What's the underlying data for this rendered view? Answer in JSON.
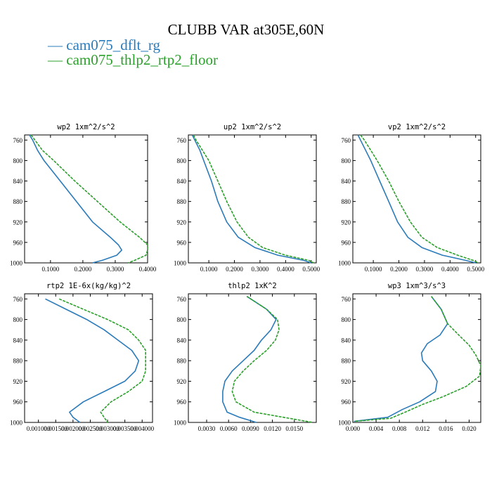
{
  "title": "CLUBB VAR at305E,60N",
  "legend": [
    {
      "label": "cam075_dflt_rg",
      "color": "#2b7bba",
      "dash": false
    },
    {
      "label": "cam075_thlp2_rtp2_floor",
      "color": "#2ca02c",
      "dash": true
    }
  ],
  "chart_data": [
    {
      "type": "line",
      "title": "wp2   1xm^2/s^2",
      "ylim": [
        1000,
        750
      ],
      "yticks": [
        760,
        800,
        840,
        880,
        920,
        960,
        1000
      ],
      "xlim": [
        0.02,
        0.4
      ],
      "xticks": [
        0.1,
        0.2,
        0.3,
        0.4
      ],
      "xticklabels": [
        "0.1000",
        "0.2000",
        "0.3000",
        "0.4000"
      ],
      "series": [
        {
          "y": [
            750,
            760,
            780,
            800,
            840,
            880,
            920,
            950,
            965,
            975,
            985,
            995,
            1000
          ],
          "x": [
            0.035,
            0.045,
            0.06,
            0.08,
            0.13,
            0.18,
            0.23,
            0.285,
            0.31,
            0.32,
            0.305,
            0.26,
            0.23
          ]
        },
        {
          "y": [
            750,
            760,
            780,
            800,
            840,
            880,
            920,
            950,
            965,
            975,
            985,
            995,
            1000
          ],
          "x": [
            0.04,
            0.052,
            0.075,
            0.11,
            0.175,
            0.245,
            0.315,
            0.375,
            0.4,
            0.405,
            0.395,
            0.36,
            0.34
          ]
        }
      ]
    },
    {
      "type": "line",
      "title": "up2   1xm^2/s^2",
      "ylim": [
        1000,
        750
      ],
      "yticks": [
        760,
        800,
        840,
        880,
        920,
        960,
        1000
      ],
      "xlim": [
        0.02,
        0.52
      ],
      "xticks": [
        0.1,
        0.2,
        0.3,
        0.4,
        0.5
      ],
      "xticklabels": [
        "0.1000",
        "0.2000",
        "0.3000",
        "0.4000",
        "0.5000"
      ],
      "series": [
        {
          "y": [
            750,
            760,
            780,
            800,
            840,
            880,
            920,
            950,
            970,
            985,
            995,
            1000
          ],
          "x": [
            0.035,
            0.045,
            0.065,
            0.08,
            0.11,
            0.135,
            0.17,
            0.215,
            0.28,
            0.37,
            0.47,
            0.5
          ]
        },
        {
          "y": [
            750,
            760,
            780,
            800,
            840,
            880,
            920,
            950,
            970,
            985,
            995,
            1000
          ],
          "x": [
            0.04,
            0.05,
            0.075,
            0.1,
            0.135,
            0.17,
            0.21,
            0.255,
            0.31,
            0.4,
            0.49,
            0.51
          ]
        }
      ]
    },
    {
      "type": "line",
      "title": "vp2   1xm^2/s^2",
      "ylim": [
        1000,
        750
      ],
      "yticks": [
        760,
        800,
        840,
        880,
        920,
        960,
        1000
      ],
      "xlim": [
        0.02,
        0.52
      ],
      "xticks": [
        0.1,
        0.2,
        0.3,
        0.4,
        0.5
      ],
      "xticklabels": [
        "0.1000",
        "0.2000",
        "0.3000",
        "0.4000",
        "0.5000"
      ],
      "series": [
        {
          "y": [
            750,
            760,
            780,
            800,
            840,
            880,
            920,
            950,
            970,
            985,
            995,
            1000
          ],
          "x": [
            0.04,
            0.05,
            0.07,
            0.09,
            0.125,
            0.16,
            0.195,
            0.235,
            0.29,
            0.37,
            0.46,
            0.5
          ]
        },
        {
          "y": [
            750,
            760,
            780,
            800,
            840,
            880,
            920,
            950,
            970,
            985,
            995,
            1000
          ],
          "x": [
            0.05,
            0.065,
            0.09,
            0.115,
            0.16,
            0.2,
            0.245,
            0.29,
            0.35,
            0.43,
            0.49,
            0.51
          ]
        }
      ]
    },
    {
      "type": "line",
      "title": "rtp2   1E-6x(kg/kg)^2",
      "ylim": [
        1000,
        750
      ],
      "yticks": [
        760,
        800,
        840,
        880,
        920,
        960,
        1000
      ],
      "xlim": [
        0.0006,
        0.0043
      ],
      "xticks": [
        0.001,
        0.0015,
        0.002,
        0.0025,
        0.003,
        0.0035,
        0.004
      ],
      "xticklabels": [
        "0.001000",
        "0.001500",
        "0.002000",
        "0.002500",
        "0.003000",
        "0.003500",
        "0.004000"
      ],
      "series": [
        {
          "y": [
            760,
            780,
            800,
            820,
            840,
            860,
            880,
            900,
            920,
            940,
            960,
            980,
            990,
            1000
          ],
          "x": [
            0.0012,
            0.0018,
            0.0024,
            0.0029,
            0.0033,
            0.0037,
            0.0039,
            0.0038,
            0.0035,
            0.0029,
            0.0023,
            0.0019,
            0.002,
            0.0022
          ]
        },
        {
          "y": [
            760,
            780,
            800,
            820,
            840,
            860,
            880,
            900,
            920,
            940,
            960,
            980,
            990,
            1000
          ],
          "x": [
            0.0016,
            0.0023,
            0.003,
            0.0036,
            0.0039,
            0.0041,
            0.0041,
            0.0041,
            0.004,
            0.0036,
            0.0031,
            0.0028,
            0.0029,
            0.003
          ]
        }
      ]
    },
    {
      "type": "line",
      "title": "thlp2   1xK^2",
      "ylim": [
        1000,
        750
      ],
      "yticks": [
        760,
        800,
        840,
        880,
        920,
        960,
        1000
      ],
      "xlim": [
        0.0005,
        0.018
      ],
      "xticks": [
        0.003,
        0.006,
        0.009,
        0.012,
        0.015
      ],
      "xticklabels": [
        "0.0030",
        "0.0060",
        "0.0090",
        "0.0120",
        "0.0150"
      ],
      "series": [
        {
          "y": [
            755,
            780,
            800,
            820,
            840,
            860,
            880,
            900,
            920,
            940,
            960,
            980,
            990,
            1000
          ],
          "x": [
            0.0085,
            0.0112,
            0.0125,
            0.0118,
            0.0105,
            0.0095,
            0.008,
            0.0065,
            0.0055,
            0.0052,
            0.0052,
            0.0058,
            0.0075,
            0.0098
          ]
        },
        {
          "y": [
            755,
            780,
            800,
            820,
            840,
            860,
            880,
            900,
            920,
            940,
            960,
            980,
            990,
            1000
          ],
          "x": [
            0.0085,
            0.0112,
            0.0127,
            0.0129,
            0.0124,
            0.0112,
            0.0095,
            0.008,
            0.0068,
            0.0065,
            0.007,
            0.0095,
            0.0135,
            0.0175
          ]
        }
      ]
    },
    {
      "type": "line",
      "title": "wp3   1xm^3/s^3",
      "ylim": [
        1000,
        750
      ],
      "yticks": [
        760,
        800,
        840,
        880,
        920,
        960,
        1000
      ],
      "xlim": [
        0,
        0.022
      ],
      "xticks": [
        0,
        0.004,
        0.008,
        0.012,
        0.016,
        0.02
      ],
      "xticklabels": [
        "0.000",
        "0.004",
        "0.008",
        "0.012",
        "0.016",
        "0.020"
      ],
      "series": [
        {
          "y": [
            755,
            780,
            808,
            830,
            847,
            865,
            880,
            900,
            920,
            940,
            960,
            975,
            990,
            998
          ],
          "x": [
            0.0135,
            0.0152,
            0.0163,
            0.015,
            0.0128,
            0.0118,
            0.012,
            0.0135,
            0.0145,
            0.0142,
            0.0115,
            0.0085,
            0.006,
            0.0002
          ]
        },
        {
          "y": [
            755,
            780,
            808,
            830,
            850,
            870,
            890,
            910,
            930,
            950,
            965,
            980,
            992,
            998
          ],
          "x": [
            0.0135,
            0.0152,
            0.0163,
            0.0182,
            0.02,
            0.0212,
            0.022,
            0.0218,
            0.0195,
            0.0155,
            0.012,
            0.009,
            0.0065,
            0.0002
          ]
        }
      ]
    }
  ]
}
